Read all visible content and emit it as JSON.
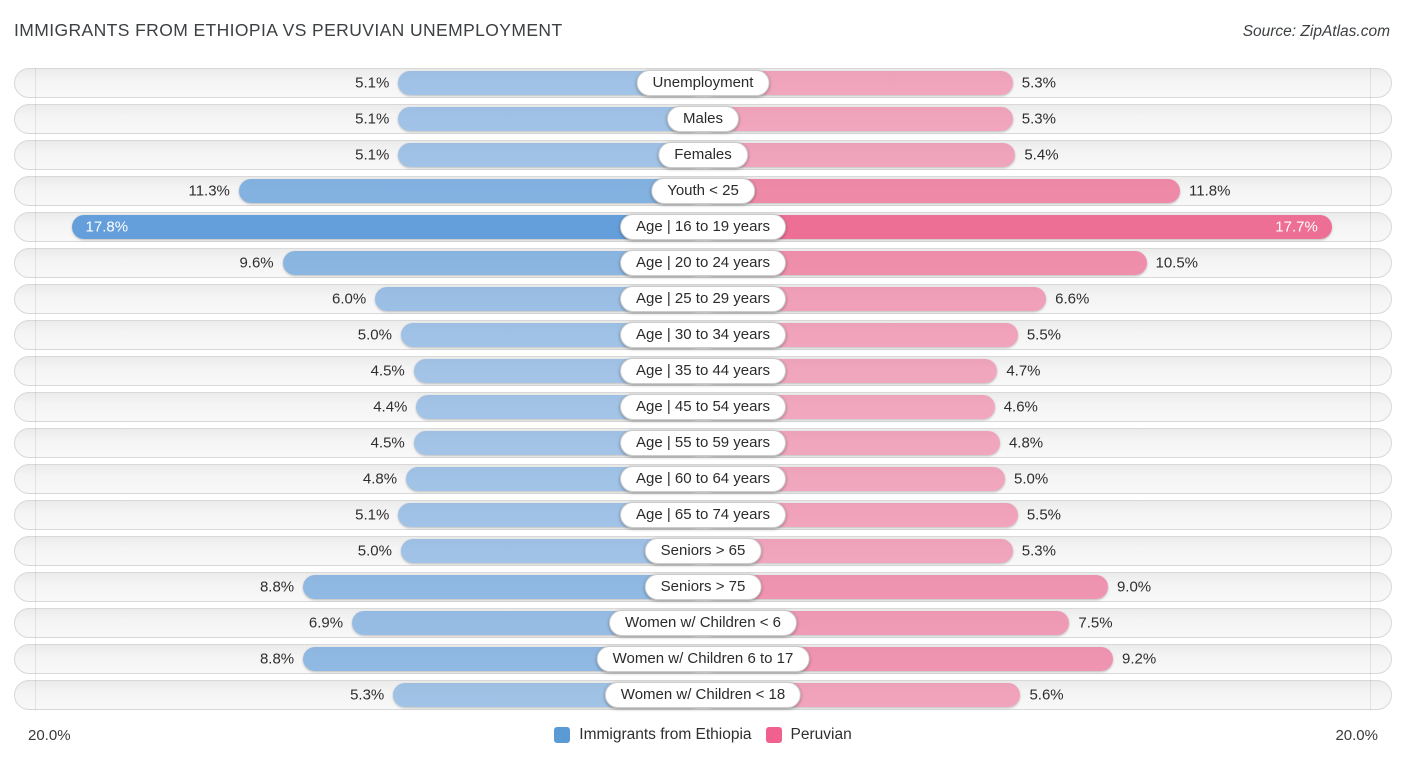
{
  "title": "IMMIGRANTS FROM ETHIOPIA VS PERUVIAN UNEMPLOYMENT",
  "source": "Source: ZipAtlas.com",
  "colors": {
    "ethiopia_blue": "#5d9ad9",
    "peruvian_pink": "#ec6790",
    "legend_blue": "#5b9bd5",
    "legend_pink": "#f0618f"
  },
  "axis": {
    "left_label": "20.0%",
    "right_label": "20.0%",
    "max_percent": 20.0
  },
  "legend": {
    "items": [
      {
        "label": "Immigrants from Ethiopia",
        "color": "#5b9bd5"
      },
      {
        "label": "Peruvian",
        "color": "#f0618f"
      }
    ]
  },
  "chart_data": {
    "type": "bar",
    "orientation": "horizontal-diverging",
    "title": "IMMIGRANTS FROM ETHIOPIA VS PERUVIAN UNEMPLOYMENT",
    "xlim": [
      0,
      20
    ],
    "axis_tick_format": "percent",
    "categories": [
      "Unemployment",
      "Males",
      "Females",
      "Youth < 25",
      "Age | 16 to 19 years",
      "Age | 20 to 24 years",
      "Age | 25 to 29 years",
      "Age | 30 to 34 years",
      "Age | 35 to 44 years",
      "Age | 45 to 54 years",
      "Age | 55 to 59 years",
      "Age | 60 to 64 years",
      "Age | 65 to 74 years",
      "Seniors > 65",
      "Seniors > 75",
      "Women w/ Children < 6",
      "Women w/ Children 6 to 17",
      "Women w/ Children < 18"
    ],
    "series": [
      {
        "name": "Immigrants from Ethiopia",
        "side": "left",
        "values": [
          5.1,
          5.1,
          5.1,
          11.3,
          17.8,
          9.6,
          6.0,
          5.0,
          4.5,
          4.4,
          4.5,
          4.8,
          5.1,
          5.0,
          8.8,
          6.9,
          8.8,
          5.3
        ],
        "labels": [
          "5.1%",
          "5.1%",
          "5.1%",
          "11.3%",
          "17.8%",
          "9.6%",
          "6.0%",
          "5.0%",
          "4.5%",
          "4.4%",
          "4.5%",
          "4.8%",
          "5.1%",
          "5.0%",
          "8.8%",
          "6.9%",
          "8.8%",
          "5.3%"
        ]
      },
      {
        "name": "Peruvian",
        "side": "right",
        "values": [
          5.3,
          5.3,
          5.4,
          11.8,
          17.7,
          10.5,
          6.6,
          5.5,
          4.7,
          4.6,
          4.8,
          5.0,
          5.5,
          5.3,
          9.0,
          7.5,
          9.2,
          5.6
        ],
        "labels": [
          "5.3%",
          "5.3%",
          "5.4%",
          "11.8%",
          "17.7%",
          "10.5%",
          "6.6%",
          "5.5%",
          "4.7%",
          "4.6%",
          "4.8%",
          "5.0%",
          "5.5%",
          "5.3%",
          "9.0%",
          "7.5%",
          "9.2%",
          "5.6%"
        ]
      }
    ],
    "legend_position": "bottom-center",
    "grid": "edge-vertical-lines"
  }
}
